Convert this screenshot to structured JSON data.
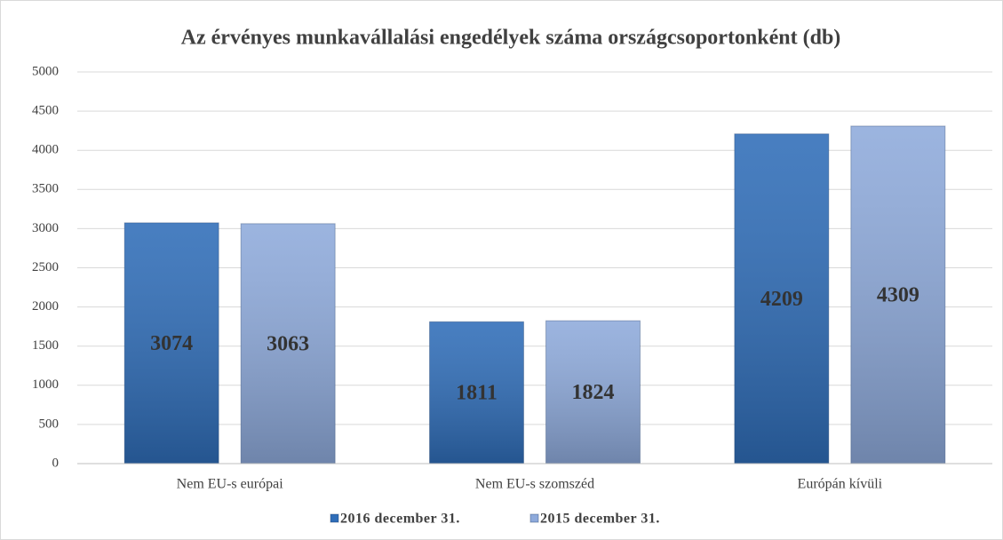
{
  "chart_data": {
    "type": "bar",
    "title": "Az érvényes munkavállalási engedélyek száma országcsoportonként (db)",
    "categories": [
      "Nem EU-s európai",
      "Nem EU-s szomszéd",
      "Európán kívüli"
    ],
    "series": [
      {
        "name": "2016 december 31.",
        "color": "#2f6db8",
        "values": [
          3074,
          1811,
          4209
        ]
      },
      {
        "name": "2015 december 31.",
        "color": "#8eaadb",
        "values": [
          3063,
          1824,
          4309
        ]
      }
    ],
    "ylim": [
      0,
      5000
    ],
    "yticks": [
      0,
      500,
      1000,
      1500,
      2000,
      2500,
      3000,
      3500,
      4000,
      4500,
      5000
    ],
    "grid": true,
    "legend": "bottom"
  }
}
